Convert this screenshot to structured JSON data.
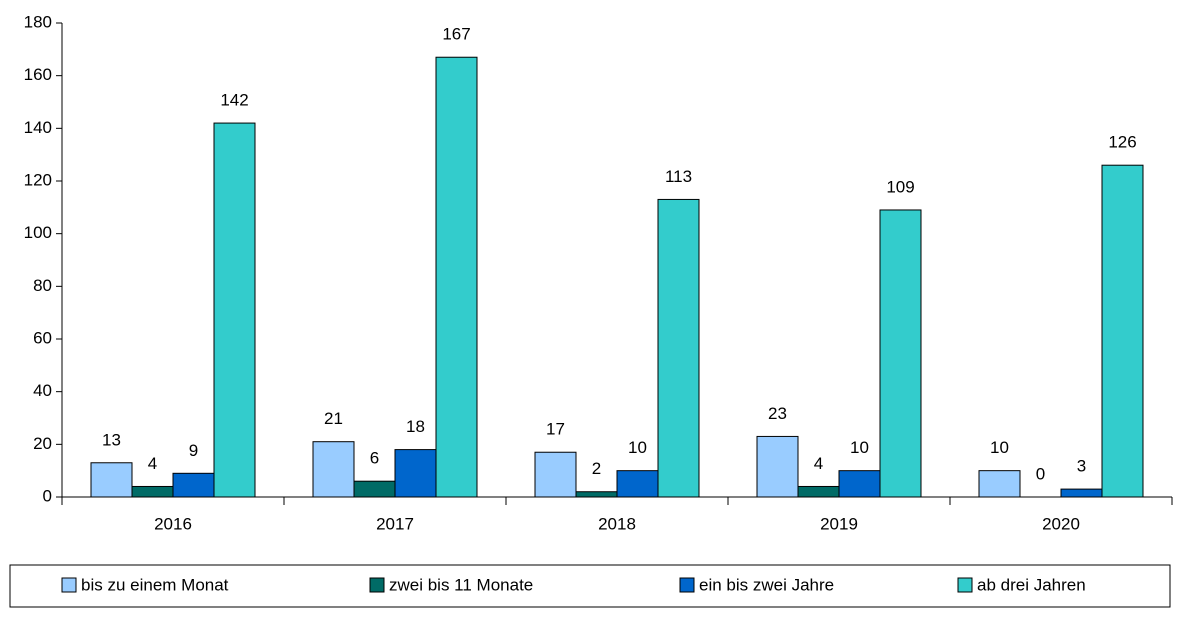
{
  "chart_data": {
    "type": "bar",
    "categories": [
      "2016",
      "2017",
      "2018",
      "2019",
      "2020"
    ],
    "series": [
      {
        "name": "bis zu einem Monat",
        "color": "#99ccff",
        "values": [
          13,
          21,
          17,
          23,
          10
        ]
      },
      {
        "name": "zwei bis 11 Monate",
        "color": "#006b66",
        "values": [
          4,
          6,
          2,
          4,
          0
        ]
      },
      {
        "name": "ein bis zwei Jahre",
        "color": "#0066cc",
        "values": [
          9,
          18,
          10,
          10,
          3
        ]
      },
      {
        "name": "ab drei Jahren",
        "color": "#33cccc",
        "values": [
          142,
          167,
          113,
          109,
          126
        ]
      }
    ],
    "ylim": [
      0,
      180
    ],
    "yticks": [
      0,
      20,
      40,
      60,
      80,
      100,
      120,
      140,
      160,
      180
    ],
    "legend": "bottom"
  }
}
